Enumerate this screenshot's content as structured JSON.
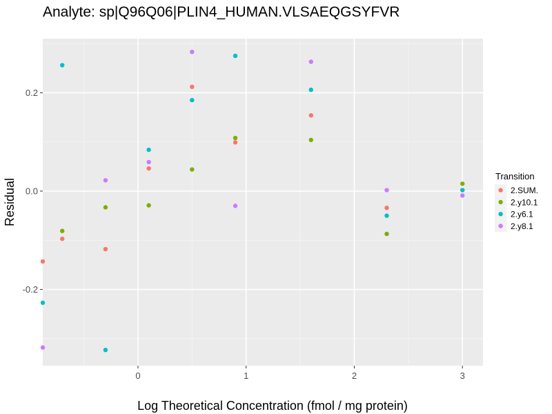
{
  "chart_data": {
    "type": "scatter",
    "title": "Analyte: sp|Q96Q06|PLIN4_HUMAN.VLSAEQGSYFVR",
    "xlabel": "Log Theoretical Concentration (fmol / mg protein)",
    "ylabel": "Residual",
    "xlim": [
      -0.88,
      3.19
    ],
    "ylim": [
      -0.355,
      0.31
    ],
    "x_ticks": [
      0,
      1,
      2,
      3
    ],
    "x_tick_labels": [
      "0",
      "1",
      "2",
      "3"
    ],
    "y_ticks": [
      -0.2,
      0.0,
      0.2
    ],
    "y_tick_labels": [
      "-0.2",
      "0.0",
      "0.2"
    ],
    "grid": true,
    "legend_title": "Transition",
    "legend_position": "right",
    "series": [
      {
        "name": "2.SUM.",
        "color": "#F8766D",
        "points": [
          {
            "x": -0.88,
            "y": -0.143
          },
          {
            "x": -0.7,
            "y": -0.097
          },
          {
            "x": -0.3,
            "y": -0.118
          },
          {
            "x": 0.1,
            "y": 0.046
          },
          {
            "x": 0.5,
            "y": 0.212
          },
          {
            "x": 0.9,
            "y": 0.099
          },
          {
            "x": 1.6,
            "y": 0.154
          },
          {
            "x": 2.3,
            "y": -0.034
          },
          {
            "x": 3.0,
            "y": 0.002
          }
        ]
      },
      {
        "name": "2.y10.1",
        "color": "#7CAE00",
        "points": [
          {
            "x": -0.7,
            "y": -0.081
          },
          {
            "x": -0.3,
            "y": -0.033
          },
          {
            "x": 0.1,
            "y": -0.029
          },
          {
            "x": 0.5,
            "y": 0.044
          },
          {
            "x": 0.9,
            "y": 0.108
          },
          {
            "x": 1.6,
            "y": 0.104
          },
          {
            "x": 2.3,
            "y": -0.087
          },
          {
            "x": 3.0,
            "y": 0.015
          }
        ]
      },
      {
        "name": "2.y6.1",
        "color": "#00BFC4",
        "points": [
          {
            "x": -0.88,
            "y": -0.227
          },
          {
            "x": -0.7,
            "y": 0.256
          },
          {
            "x": -0.3,
            "y": -0.323
          },
          {
            "x": 0.1,
            "y": 0.084
          },
          {
            "x": 0.5,
            "y": 0.185
          },
          {
            "x": 0.9,
            "y": 0.275
          },
          {
            "x": 1.6,
            "y": 0.206
          },
          {
            "x": 2.3,
            "y": -0.05
          },
          {
            "x": 3.0,
            "y": 0.002
          }
        ]
      },
      {
        "name": "2.y8.1",
        "color": "#C77CFF",
        "points": [
          {
            "x": -0.88,
            "y": -0.318
          },
          {
            "x": -0.3,
            "y": 0.022
          },
          {
            "x": 0.1,
            "y": 0.059
          },
          {
            "x": 0.5,
            "y": 0.283
          },
          {
            "x": 0.9,
            "y": -0.03
          },
          {
            "x": 1.6,
            "y": 0.263
          },
          {
            "x": 2.3,
            "y": 0.002
          },
          {
            "x": 3.0,
            "y": -0.009
          }
        ]
      }
    ]
  }
}
